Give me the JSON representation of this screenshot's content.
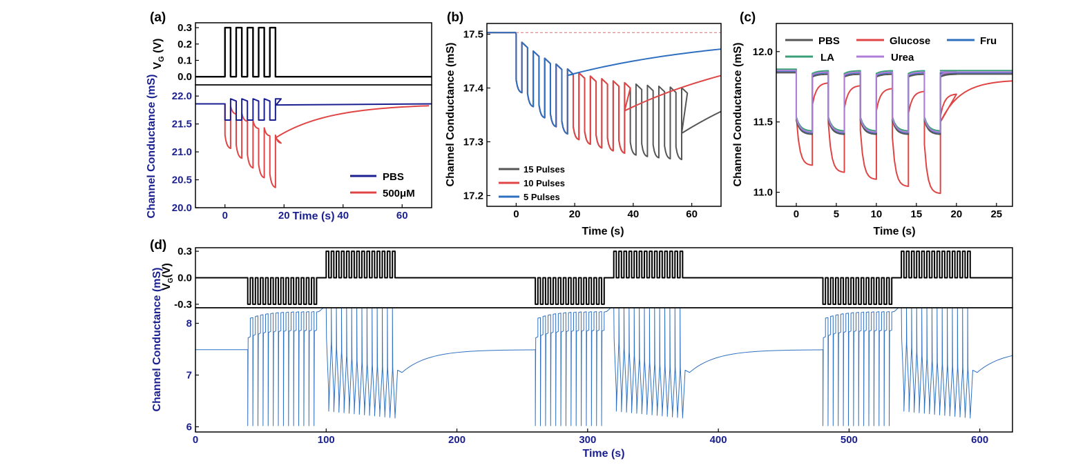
{
  "chart_data": [
    {
      "panel": "(a)",
      "type": "line",
      "xlabel": "Time (s)",
      "xlim": [
        -10,
        70
      ],
      "xticks": [
        0,
        20,
        40,
        60
      ],
      "top": {
        "ylabel": "V",
        "ylabel_sub": "G",
        "ylabel_unit": " (V)",
        "ylim": [
          -0.05,
          0.33
        ],
        "yticks": [
          "0.0",
          "0.1",
          "0.2",
          "0.3"
        ],
        "pulse_count": 5,
        "pulse_start": 0,
        "pulse_period": 3.8,
        "pulse_width": 1.9,
        "pulse_high": 0.3,
        "pulse_low": 0.0
      },
      "bottom": {
        "ylabel": "Channel Conductance (mS)",
        "ylim": [
          20.0,
          22.2
        ],
        "yticks": [
          "20.0",
          "20.5",
          "21.0",
          "21.5",
          "22.0"
        ],
        "series": [
          {
            "name": "PBS",
            "color": "#1a1f8f",
            "baseline": 21.86,
            "high": 21.95,
            "low": 21.57,
            "recovery_tau": 1.5
          },
          {
            "name": "500μM",
            "color": "#e04545",
            "baseline": 21.86,
            "high_first": 21.82,
            "low_first": 21.05,
            "low_last": 20.35,
            "high_last": 21.3,
            "recovery_tau": 18
          }
        ]
      }
    },
    {
      "panel": "(b)",
      "type": "line",
      "xlabel": "Time (s)",
      "ylabel": "Channel Conductance (mS)",
      "xlim": [
        -10,
        70
      ],
      "ylim": [
        17.18,
        17.52
      ],
      "xticks": [
        0,
        20,
        40,
        60
      ],
      "yticks": [
        "17.2",
        "17.3",
        "17.4",
        "17.5"
      ],
      "reference_line": 17.503,
      "series": [
        {
          "name": "15 Pulses",
          "color": "#555555",
          "pulses": 15
        },
        {
          "name": "10 Pulses",
          "color": "#e04545",
          "pulses": 10
        },
        {
          "name": "5 Pulses",
          "color": "#2e6fc0",
          "pulses": 5
        }
      ]
    },
    {
      "panel": "(c)",
      "type": "line",
      "xlabel": "Time (s)",
      "ylabel": "Channel Conductance (mS)",
      "xlim": [
        -2.5,
        27
      ],
      "ylim": [
        10.9,
        12.2
      ],
      "xticks": [
        0,
        5,
        10,
        15,
        20,
        25
      ],
      "yticks": [
        "11.0",
        "11.5",
        "12.0"
      ],
      "series": [
        {
          "name": "PBS",
          "color": "#555555"
        },
        {
          "name": "Glucose",
          "color": "#e04545"
        },
        {
          "name": "Fru",
          "color": "#2e6fc0"
        },
        {
          "name": "LA",
          "color": "#3aa078"
        },
        {
          "name": "Urea",
          "color": "#b07ed8"
        }
      ]
    },
    {
      "panel": "(d)",
      "type": "line",
      "xlabel": "Time (s)",
      "xlim": [
        0,
        625
      ],
      "xticks": [
        0,
        100,
        200,
        300,
        400,
        500,
        600
      ],
      "top": {
        "ylabel": "V",
        "ylabel_sub": "G",
        "ylabel_unit": "(V)",
        "ylim": [
          -0.34,
          0.34
        ],
        "yticks": [
          "0.3",
          "0.0",
          "-0.3"
        ],
        "cycle_starts": [
          40,
          260,
          480
        ],
        "negative_block": [
          0,
          58
        ],
        "positive_block": [
          60,
          118
        ],
        "pulse_period": 3.9
      },
      "bottom": {
        "ylabel": "Channel Conductance (mS)",
        "ylim": [
          5.9,
          8.3
        ],
        "yticks": [
          "6",
          "7",
          "8"
        ],
        "color": "#2e6fc0",
        "baseline": 7.49
      }
    }
  ]
}
